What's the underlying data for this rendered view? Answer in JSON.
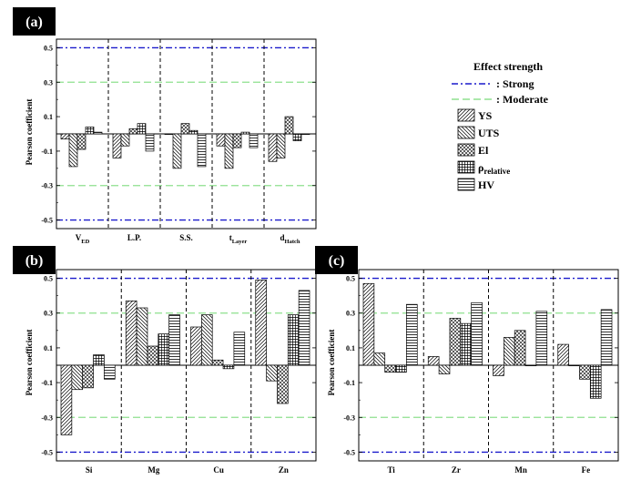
{
  "legend": {
    "title": "Effect strength",
    "lines": [
      {
        "label": ": Strong",
        "color": "#1a1acc",
        "dash": "dashdot"
      },
      {
        "label": ": Moderate",
        "color": "#8fe08f",
        "dash": "dash"
      }
    ],
    "series": [
      {
        "label": "YS",
        "sub": "",
        "pattern": "diag-right"
      },
      {
        "label": "UTS",
        "sub": "",
        "pattern": "diag-left"
      },
      {
        "label": "El",
        "sub": "",
        "pattern": "cross"
      },
      {
        "label": "ρ",
        "sub": "relative",
        "pattern": "grid"
      },
      {
        "label": "HV",
        "sub": "",
        "pattern": "horiz"
      }
    ]
  },
  "chart_data": [
    {
      "panel": "(a)",
      "type": "bar",
      "ylabel": "Pearson coefficient",
      "ylim": [
        -0.55,
        0.55
      ],
      "yticks": [
        "0.5",
        "0.3",
        "0.1",
        "-0.1",
        "-0.3",
        "-0.5"
      ],
      "categories": [
        {
          "main": "V",
          "sub": "ED"
        },
        {
          "main": "L.P.",
          "sub": ""
        },
        {
          "main": "S.S.",
          "sub": ""
        },
        {
          "main": "t",
          "sub": "Layer"
        },
        {
          "main": "d",
          "sub": "Hatch"
        }
      ],
      "series": [
        {
          "name": "YS",
          "values": [
            -0.03,
            -0.14,
            0.0,
            -0.07,
            -0.16
          ]
        },
        {
          "name": "UTS",
          "values": [
            -0.19,
            -0.07,
            -0.2,
            -0.2,
            -0.14
          ]
        },
        {
          "name": "El",
          "values": [
            -0.09,
            0.03,
            0.06,
            -0.08,
            0.1
          ]
        },
        {
          "name": "ρrelative",
          "values": [
            0.04,
            0.06,
            0.02,
            0.01,
            -0.04
          ]
        },
        {
          "name": "HV",
          "values": [
            0.01,
            -0.1,
            -0.19,
            -0.08,
            0.0
          ]
        }
      ],
      "reference_lines": {
        "strong": [
          0.5,
          -0.5
        ],
        "moderate": [
          0.3,
          -0.3
        ]
      }
    },
    {
      "panel": "(b)",
      "type": "bar",
      "ylabel": "Pearson coefficient",
      "ylim": [
        -0.55,
        0.55
      ],
      "yticks": [
        "0.5",
        "0.3",
        "0.1",
        "-0.1",
        "-0.3",
        "-0.5"
      ],
      "categories": [
        {
          "main": "Si",
          "sub": ""
        },
        {
          "main": "Mg",
          "sub": ""
        },
        {
          "main": "Cu",
          "sub": ""
        },
        {
          "main": "Zn",
          "sub": ""
        }
      ],
      "series": [
        {
          "name": "YS",
          "values": [
            -0.4,
            0.37,
            0.22,
            0.49
          ]
        },
        {
          "name": "UTS",
          "values": [
            -0.14,
            0.33,
            0.29,
            -0.09
          ]
        },
        {
          "name": "El",
          "values": [
            -0.13,
            0.11,
            0.03,
            -0.22
          ]
        },
        {
          "name": "ρrelative",
          "values": [
            0.06,
            0.18,
            -0.02,
            0.29
          ]
        },
        {
          "name": "HV",
          "values": [
            -0.08,
            0.29,
            0.19,
            0.43
          ]
        }
      ],
      "reference_lines": {
        "strong": [
          0.5,
          -0.5
        ],
        "moderate": [
          0.3,
          -0.3
        ]
      }
    },
    {
      "panel": "(c)",
      "type": "bar",
      "ylabel": "Pearson coefficient",
      "ylim": [
        -0.55,
        0.55
      ],
      "yticks": [
        "0.5",
        "0.3",
        "0.1",
        "-0.1",
        "-0.3",
        "-0.5"
      ],
      "categories": [
        {
          "main": "Ti",
          "sub": ""
        },
        {
          "main": "Zr",
          "sub": ""
        },
        {
          "main": "Mn",
          "sub": ""
        },
        {
          "main": "Fe",
          "sub": ""
        }
      ],
      "series": [
        {
          "name": "YS",
          "values": [
            0.47,
            0.05,
            -0.06,
            0.12
          ]
        },
        {
          "name": "UTS",
          "values": [
            0.07,
            -0.05,
            0.16,
            0.0
          ]
        },
        {
          "name": "El",
          "values": [
            -0.04,
            0.27,
            0.2,
            -0.08
          ]
        },
        {
          "name": "ρrelative",
          "values": [
            -0.04,
            0.24,
            0.0,
            -0.19
          ]
        },
        {
          "name": "HV",
          "values": [
            0.35,
            0.36,
            0.31,
            0.32
          ]
        }
      ],
      "reference_lines": {
        "strong": [
          0.5,
          -0.5
        ],
        "moderate": [
          0.3,
          -0.3
        ]
      }
    }
  ]
}
